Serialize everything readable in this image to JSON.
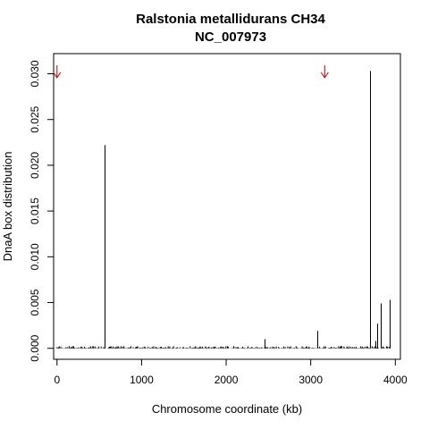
{
  "chart_data": {
    "type": "bar",
    "title": "Ralstonia metallidurans CH34",
    "subtitle": "NC_007973",
    "xlabel": "Chromosome coordinate (kb)",
    "ylabel": "DnaA box distribution",
    "xlim": [
      -40,
      4060
    ],
    "ylim": [
      -0.0012,
      0.0322
    ],
    "xticks": [
      0,
      1000,
      2000,
      3000,
      4000
    ],
    "xtick_labels": [
      "0",
      "1000",
      "2000",
      "3000",
      "4000"
    ],
    "yticks": [
      0.0,
      0.005,
      0.01,
      0.015,
      0.02,
      0.025,
      0.03
    ],
    "ytick_labels": [
      "0.000",
      "0.005",
      "0.010",
      "0.015",
      "0.020",
      "0.025",
      "0.030"
    ],
    "grid": false,
    "legend": "none",
    "bar_color": "#000000",
    "arrow_color": "#cc0000",
    "arrows_kb": [
      0,
      3165
    ],
    "peaks": [
      {
        "x": 560,
        "y": 0.0222
      },
      {
        "x": 2450,
        "y": 0.001
      },
      {
        "x": 3080,
        "y": 0.0019
      },
      {
        "x": 3700,
        "y": 0.0303
      },
      {
        "x": 3760,
        "y": 0.0008
      },
      {
        "x": 3790,
        "y": 0.0027
      },
      {
        "x": 3830,
        "y": 0.0049
      },
      {
        "x": 3930,
        "y": 0.0053
      }
    ],
    "baseline_noise_max": 0.0004,
    "baseline_xmin": 0,
    "baseline_xmax": 3940
  }
}
